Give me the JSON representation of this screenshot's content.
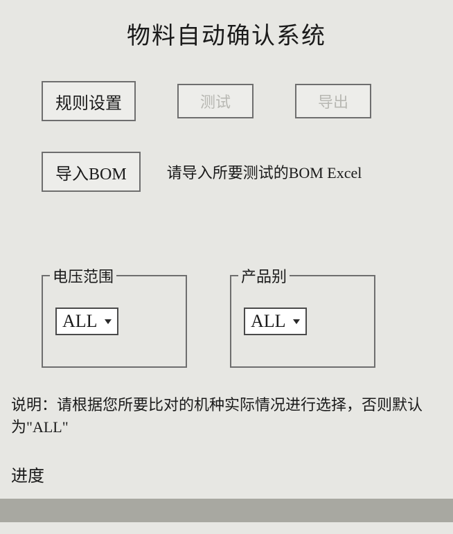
{
  "title": "物料自动确认系统",
  "toolbar": {
    "rule_settings": "规则设置",
    "test": "测试",
    "export": "导出"
  },
  "import_row": {
    "import_bom": "导入BOM",
    "hint": "请导入所要测试的BOM Excel"
  },
  "groups": {
    "voltage_range": {
      "legend": "电压范围",
      "selected": "ALL"
    },
    "product_type": {
      "legend": "产品别",
      "selected": "ALL"
    }
  },
  "note": "说明：请根据您所要比对的机种实际情况进行选择，否则默认为\"ALL\"",
  "progress": {
    "label": "进度",
    "value": 0,
    "bar_color": "#a8a8a1"
  },
  "colors": {
    "background": "#e7e7e3",
    "border": "#6e6e6e",
    "disabled_text": "#b7b7b2",
    "text": "#1a1a1a",
    "select_bg": "#ffffff"
  }
}
